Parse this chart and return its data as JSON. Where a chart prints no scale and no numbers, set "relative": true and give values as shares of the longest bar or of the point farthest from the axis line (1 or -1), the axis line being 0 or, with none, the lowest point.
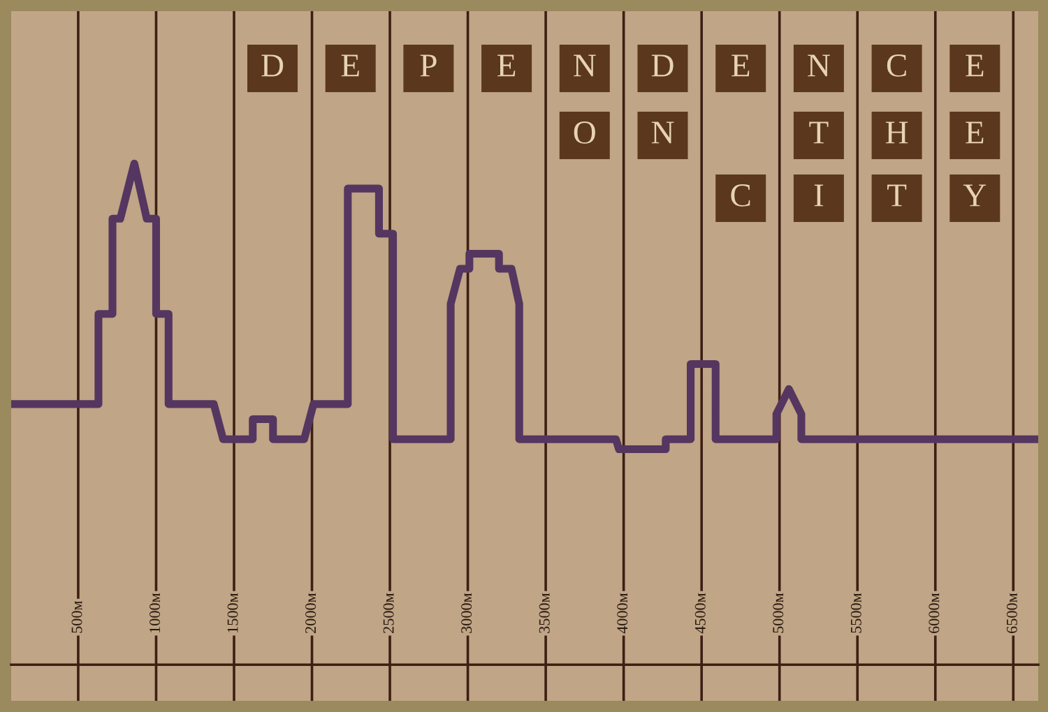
{
  "chart_data": {
    "type": "line",
    "title": "DEPENDENCE ON THE CITY",
    "relative": true,
    "x": [
      70,
      630,
      630,
      720,
      720,
      770,
      860,
      940,
      1000,
      1000,
      1080,
      1080,
      1370,
      1430,
      1620,
      1620,
      1750,
      1750,
      1950,
      2010,
      2230,
      2230,
      2430,
      2430,
      2520,
      2520,
      2890,
      2890,
      2950,
      3010,
      3010,
      3200,
      3200,
      3280,
      3330,
      3330,
      3950,
      3970,
      4270,
      4270,
      4430,
      4430,
      4590,
      4590,
      4980,
      4980,
      5060,
      5140,
      5140,
      6660
    ],
    "series": [
      {
        "color": "#553660",
        "values": [
          0.52,
          0.52,
          0.7,
          0.7,
          0.89,
          0.89,
          1.0,
          0.89,
          0.89,
          0.7,
          0.7,
          0.52,
          0.52,
          0.45,
          0.45,
          0.49,
          0.49,
          0.45,
          0.45,
          0.52,
          0.52,
          0.95,
          0.95,
          0.86,
          0.86,
          0.45,
          0.45,
          0.72,
          0.79,
          0.79,
          0.82,
          0.82,
          0.79,
          0.79,
          0.72,
          0.45,
          0.45,
          0.43,
          0.43,
          0.45,
          0.45,
          0.6,
          0.6,
          0.45,
          0.45,
          0.5,
          0.55,
          0.5,
          0.45,
          0.45
        ]
      }
    ],
    "xlim": [
      70,
      6660
    ],
    "xticks": [
      {
        "value": 500,
        "label": "500м"
      },
      {
        "value": 1000,
        "label": "1000м"
      },
      {
        "value": 1500,
        "label": "1500м"
      },
      {
        "value": 2000,
        "label": "2000м"
      },
      {
        "value": 2500,
        "label": "2500м"
      },
      {
        "value": 3000,
        "label": "3000м"
      },
      {
        "value": 3500,
        "label": "3500м"
      },
      {
        "value": 4000,
        "label": "4000м"
      },
      {
        "value": 4500,
        "label": "4500м"
      },
      {
        "value": 5000,
        "label": "5000м"
      },
      {
        "value": 5500,
        "label": "5500м"
      },
      {
        "value": 6000,
        "label": "6000м"
      },
      {
        "value": 6500,
        "label": "6500м"
      }
    ],
    "grid": "x",
    "marker": "none",
    "line_style": "solid"
  }
}
